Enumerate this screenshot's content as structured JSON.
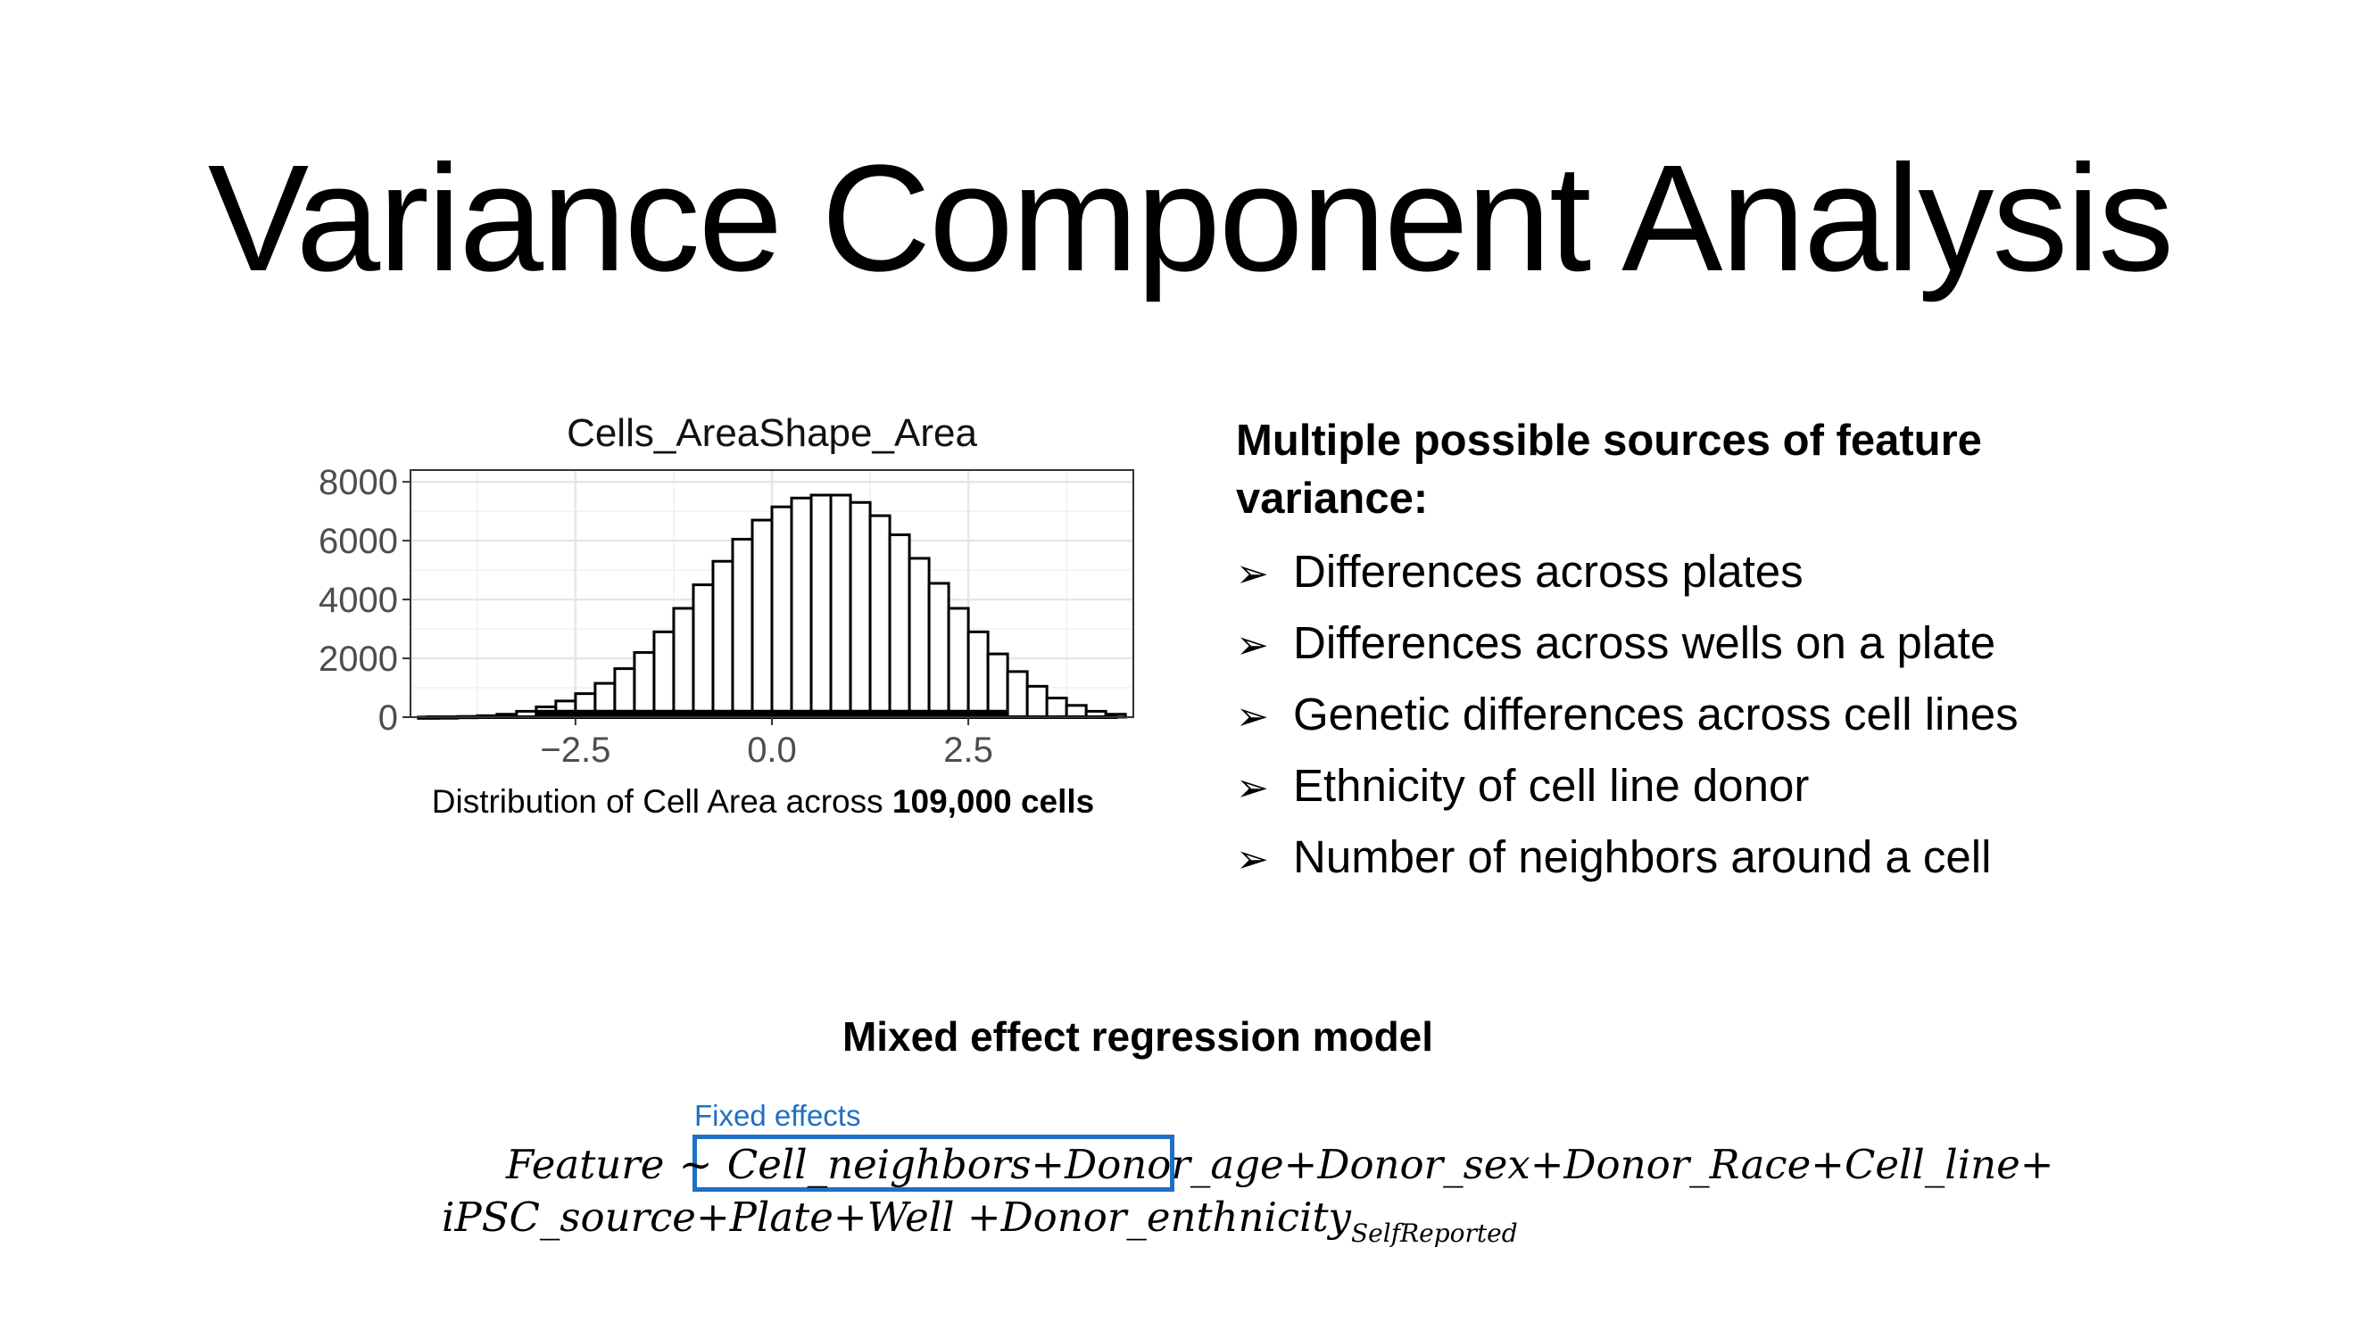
{
  "slide": {
    "title": "Variance Component Analysis"
  },
  "chart_data": {
    "type": "bar",
    "title": "Cells_AreaShape_Area",
    "xlabel": "",
    "ylabel": "",
    "xlim": [
      -4.6,
      4.6
    ],
    "ylim": [
      0,
      8400
    ],
    "xticks": [
      -2.5,
      0.0,
      2.5
    ],
    "xtick_labels": [
      "−2.5",
      "0.0",
      "2.5"
    ],
    "yticks": [
      0,
      2000,
      4000,
      6000,
      8000
    ],
    "ytick_labels": [
      "0",
      "2000",
      "4000",
      "6000",
      "8000"
    ],
    "grid": true,
    "bin_width": 0.25,
    "bin_centers": [
      -4.375,
      -4.125,
      -3.875,
      -3.625,
      -3.375,
      -3.125,
      -2.875,
      -2.625,
      -2.375,
      -2.125,
      -1.875,
      -1.625,
      -1.375,
      -1.125,
      -0.875,
      -0.625,
      -0.375,
      -0.125,
      0.125,
      0.375,
      0.625,
      0.875,
      1.125,
      1.375,
      1.625,
      1.875,
      2.125,
      2.375,
      2.625,
      2.875,
      3.125,
      3.375,
      3.625,
      3.875,
      4.125,
      4.375
    ],
    "values": [
      5,
      10,
      25,
      50,
      100,
      200,
      350,
      550,
      800,
      1150,
      1650,
      2200,
      2900,
      3700,
      4500,
      5300,
      6050,
      6700,
      7150,
      7450,
      7550,
      7550,
      7300,
      6850,
      6200,
      5400,
      4550,
      3700,
      2900,
      2150,
      1550,
      1050,
      650,
      400,
      200,
      100
    ],
    "values_note_free": true
  },
  "histogram_caption": {
    "prefix": "Distribution of Cell Area across ",
    "bold": "109,000 cells"
  },
  "sources": {
    "heading": "Multiple possible sources of feature variance:",
    "bullet_glyph": "➢",
    "items": [
      "Differences across plates",
      "Differences across wells on a plate",
      "Genetic differences across cell lines",
      "Ethnicity of cell line donor",
      "Number of neighbors around a cell"
    ]
  },
  "model": {
    "heading": "Mixed effect regression model",
    "fixed_label": "Fixed effects",
    "line1": {
      "lhs": "Feature",
      "tilde": "∼",
      "fixed": "Cell_neighbors+Donor_age",
      "rest": "+Donor_sex+Donor_Race+Cell_line+"
    },
    "line2": {
      "main": "iPSC_source+Plate+Well +Donor_enthnicity",
      "subscript": "SelfReported"
    },
    "box_color": "#1f6fc2"
  }
}
